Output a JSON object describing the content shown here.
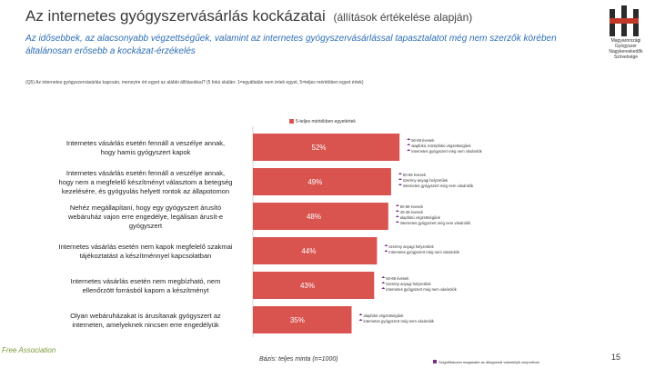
{
  "title": "Az internetes gyógyszervásárlás kockázatai",
  "title_suffix": "(állítások értékelése alapján)",
  "subtitle": "Az idősebbek, az alacsonyabb végzettségűek, valamint az internetes gyógyszervásárlással tapasztalatot még nem szerzők körében általánosan erősebb a kockázat-érzékelés",
  "question": "(Q5) Az internetes gyógyszervásárlás kapcsán, mennyire ért egyet az alábbi állításokkal? (5 fokú skálán: 1=egyáltalán nem értek egyet, 5=teljes mértékben egyet értek)",
  "legend_label": "5-teljes mértékben egyetértek",
  "base_note": "Bázis: teljes minta (n=1000)",
  "page_number": "15",
  "footnote": "Szignifikánsan magasabb az átlagosnál valamelyik csoportban",
  "brand_text": "Free Association",
  "logo_label": "Magyarországi Gyógyszer Nagykereskedők Szövetsége",
  "colors": {
    "bar": "#d9534f",
    "marker": "#7a2b8c"
  },
  "chart_data": {
    "type": "bar",
    "orientation": "horizontal",
    "xlim": [
      0,
      100
    ],
    "categories": [
      "Internetes vásárlás esetén fennáll a veszélye annak, hogy hamis gyógyszert kapok",
      "Internetes vásárlás esetén fennáll a veszélye annak, hogy nem a megfelelő készítményt választom a betegség kezelésére, és gyógyulás helyett rontok az állapotomon",
      "Nehéz megállapítani, hogy egy gyógyszert árusító webáruház vajon erre engedélye, legálisan árusít-e gyógyszert",
      "Internetes vásárlás esetén nem kapok megfelelő szakmai tájékoztatást a készítménnyel kapcsolatban",
      "Internetes vásárlás esetén nem megbízható, nem ellenőrzött forrásból kapom a készítményt",
      "Olyan webáruházakat is árusítanak gyógyszert az interneten, amelyeknek nincsen erre engedélyük"
    ],
    "values": [
      52,
      49,
      48,
      44,
      43,
      35
    ],
    "value_labels": [
      "52%",
      "49%",
      "48%",
      "44%",
      "43%",
      "35%"
    ],
    "annotations": [
      [
        "50-69 évesek",
        "alapfokú, középfokú végzettségűek",
        "internetes gyógyszert még nem vásárolók"
      ],
      [
        "50-69 évesek",
        "szerény anyagi helyzetűek",
        "internetes gyógyszert még nem vásárolók"
      ],
      [
        "50-69 évesek",
        "40-49 évesek",
        "alapfokú végzettségűek",
        "internetes gyógyszert még nem vásárolók"
      ],
      [
        "szerény anyagi helyzetűek",
        "internetes gyógyszert még nem vásárolók"
      ],
      [
        "50-69 évesek",
        "szerény anyagi helyzetűek",
        "internetes gyógyszert még nem vásárolók"
      ],
      [
        "alapfokú végzettségűek",
        "internetes gyógyszert még nem vásárolók"
      ]
    ]
  }
}
